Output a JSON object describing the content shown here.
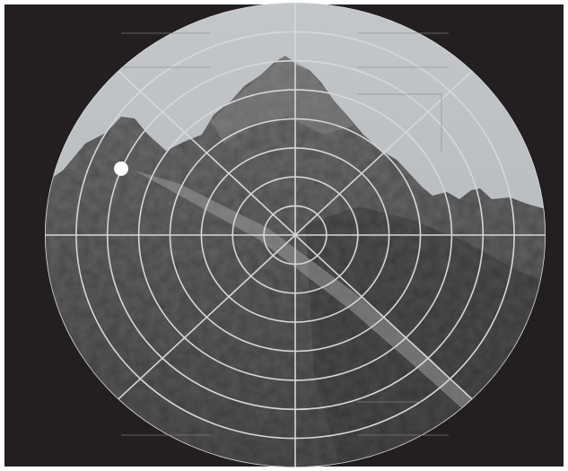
{
  "colors": {
    "background": "#231f20",
    "sky": "#b9bcbf",
    "grid": "#d7d7d7",
    "marker": "#ffffff"
  },
  "grid": {
    "rings": 8,
    "spokes": 8
  }
}
